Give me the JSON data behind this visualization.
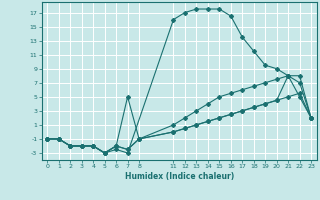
{
  "xlabel": "Humidex (Indice chaleur)",
  "background_color": "#c8e8e8",
  "line_color": "#1a7070",
  "grid_color": "#ffffff",
  "xlim": [
    -0.5,
    23.5
  ],
  "ylim": [
    -4,
    18.5
  ],
  "xticks": [
    0,
    1,
    2,
    3,
    4,
    5,
    6,
    7,
    8,
    11,
    12,
    13,
    14,
    15,
    16,
    17,
    18,
    19,
    20,
    21,
    22,
    23
  ],
  "yticks": [
    -3,
    -1,
    1,
    3,
    5,
    7,
    9,
    11,
    13,
    15,
    17
  ],
  "lines": [
    {
      "x": [
        0,
        1,
        2,
        3,
        4,
        5,
        6,
        7,
        11,
        12,
        13,
        14,
        15,
        16,
        17,
        18,
        19,
        20,
        21,
        22,
        23
      ],
      "y": [
        -1,
        -1,
        -2,
        -2,
        -2,
        -3,
        -2.5,
        -3,
        16,
        17,
        17.5,
        17.5,
        17.5,
        16.5,
        13.5,
        11.5,
        9.5,
        9,
        8,
        7,
        2
      ]
    },
    {
      "x": [
        0,
        1,
        2,
        3,
        4,
        5,
        6,
        7,
        8,
        11,
        12,
        13,
        14,
        15,
        16,
        17,
        18,
        19,
        20,
        21,
        22,
        23
      ],
      "y": [
        -1,
        -1,
        -2,
        -2,
        -2,
        -3,
        -2,
        -2.5,
        -1,
        1,
        2,
        3,
        4,
        5,
        5.5,
        6,
        6.5,
        7,
        7.5,
        8,
        8,
        2
      ]
    },
    {
      "x": [
        0,
        1,
        2,
        3,
        4,
        5,
        6,
        7,
        8,
        11,
        12,
        13,
        14,
        15,
        16,
        17,
        18,
        19,
        20,
        21,
        22,
        23
      ],
      "y": [
        -1,
        -1,
        -2,
        -2,
        -2,
        -3,
        -2,
        -2.5,
        -1,
        0,
        0.5,
        1,
        1.5,
        2,
        2.5,
        3,
        3.5,
        4,
        4.5,
        5,
        5.5,
        2
      ]
    },
    {
      "x": [
        0,
        1,
        2,
        3,
        4,
        5,
        6,
        7,
        8,
        11,
        12,
        13,
        14,
        15,
        16,
        17,
        18,
        19,
        20,
        21,
        22,
        23
      ],
      "y": [
        -1,
        -1,
        -2,
        -2,
        -2,
        -3,
        -2,
        5,
        -1,
        0,
        0.5,
        1,
        1.5,
        2,
        2.5,
        3,
        3.5,
        4,
        4.5,
        8,
        5,
        2
      ]
    }
  ]
}
